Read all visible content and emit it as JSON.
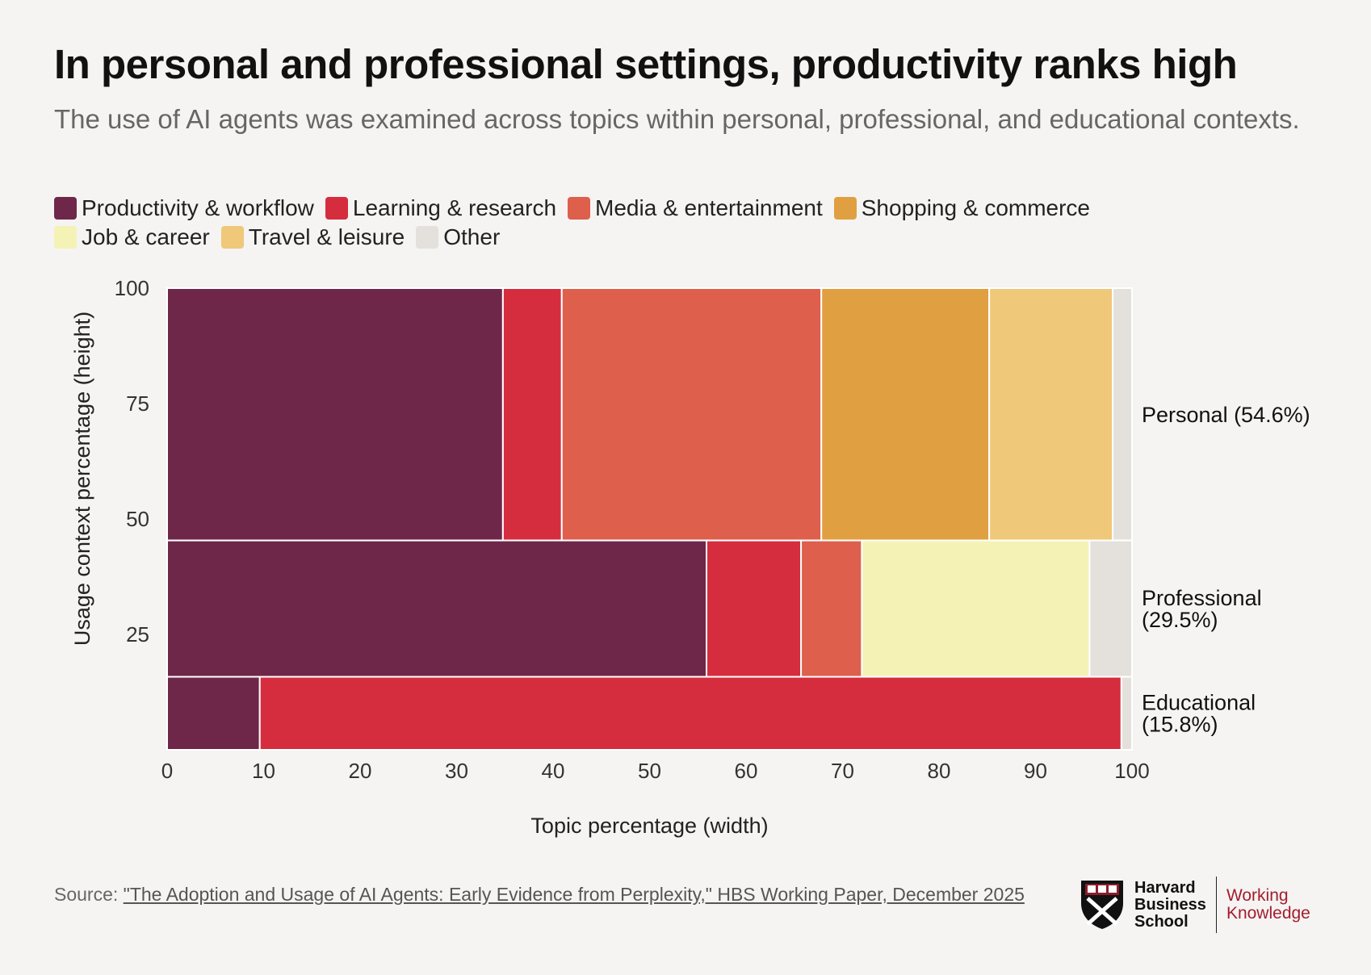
{
  "header": {
    "title": "In personal and professional settings, productivity ranks high",
    "subtitle": "The use of AI agents was examined across topics within personal, professional, and educational contexts."
  },
  "legend": {
    "items": [
      {
        "label": "Productivity & workflow",
        "color": "#6e2749"
      },
      {
        "label": "Learning & research",
        "color": "#d52d3e"
      },
      {
        "label": "Media & entertainment",
        "color": "#dd5f4c"
      },
      {
        "label": "Shopping & commerce",
        "color": "#e0a041"
      },
      {
        "label": "Job & career",
        "color": "#f5f2b6"
      },
      {
        "label": "Travel & leisure",
        "color": "#efc879"
      },
      {
        "label": "Other",
        "color": "#e4e1dd"
      }
    ]
  },
  "chart_data": {
    "type": "marimekko",
    "xlabel": "Topic percentage (width)",
    "ylabel": "Usage context percentage (height)",
    "xlim": [
      0,
      100
    ],
    "ylim": [
      0,
      100
    ],
    "xticks": [
      "0",
      "10",
      "20",
      "30",
      "40",
      "50",
      "60",
      "70",
      "80",
      "90",
      "100"
    ],
    "yticks": [
      "25",
      "50",
      "75",
      "100"
    ],
    "rows": [
      {
        "label": "Personal (54.6%)",
        "share": 54.6,
        "segments": [
          {
            "topic": "Productivity & workflow",
            "value": 34.8
          },
          {
            "topic": "Learning & research",
            "value": 6.1
          },
          {
            "topic": "Media & entertainment",
            "value": 26.9
          },
          {
            "topic": "Shopping & commerce",
            "value": 17.4
          },
          {
            "topic": "Travel & leisure",
            "value": 12.8
          },
          {
            "topic": "Other",
            "value": 2.0
          }
        ]
      },
      {
        "label": "Professional (29.5%)",
        "share": 29.5,
        "segments": [
          {
            "topic": "Productivity & workflow",
            "value": 55.9
          },
          {
            "topic": "Learning & research",
            "value": 9.8
          },
          {
            "topic": "Media & entertainment",
            "value": 6.3
          },
          {
            "topic": "Job & career",
            "value": 23.6
          },
          {
            "topic": "Other",
            "value": 4.4
          }
        ]
      },
      {
        "label": "Educational (15.8%)",
        "share": 15.8,
        "segments": [
          {
            "topic": "Productivity & workflow",
            "value": 9.6
          },
          {
            "topic": "Learning & research",
            "value": 89.3
          },
          {
            "topic": "Other",
            "value": 1.1
          }
        ]
      }
    ]
  },
  "footer": {
    "source_prefix": "Source: ",
    "source_link": "\"The Adoption and Usage of AI Agents: Early Evidence from Perplexity,\" HBS Working Paper, December 2025",
    "logo_line1": "Harvard",
    "logo_line2": "Business",
    "logo_line3": "School",
    "wk_line1": "Working",
    "wk_line2": "Knowledge"
  }
}
